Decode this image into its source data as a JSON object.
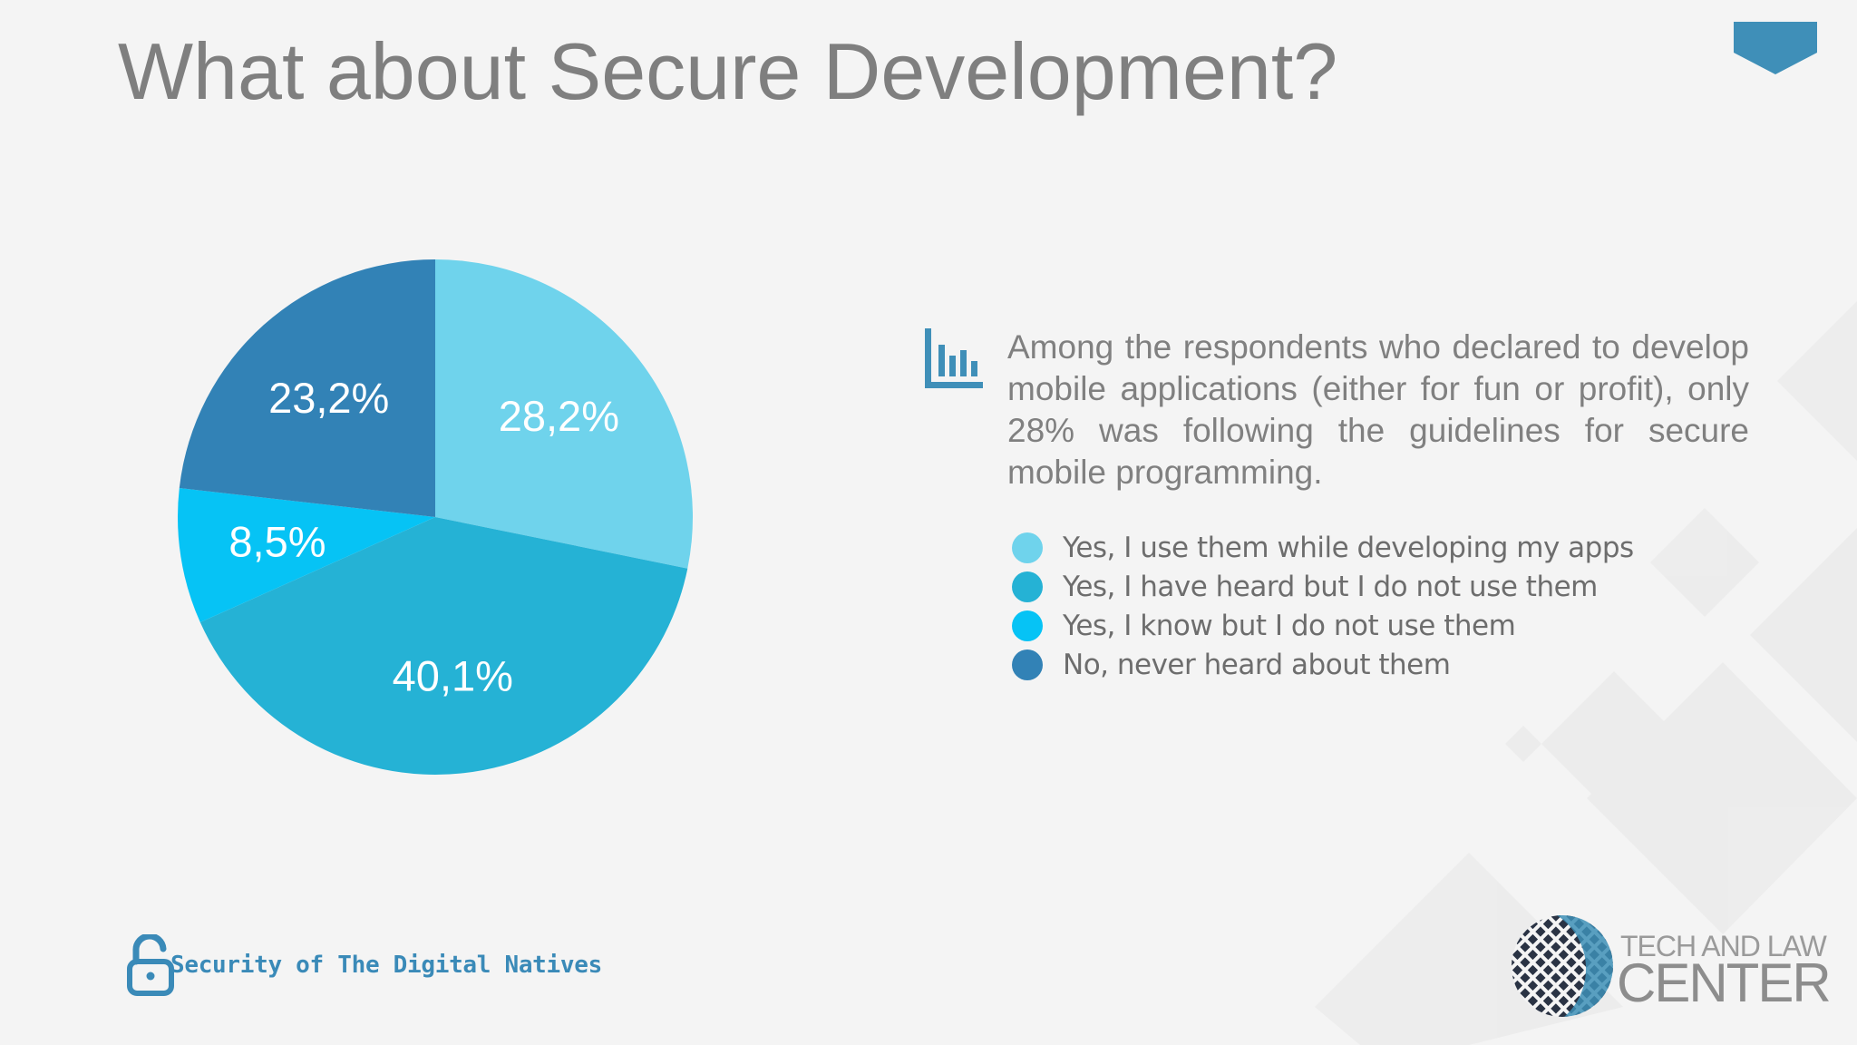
{
  "title": "What about Secure Development?",
  "description": "Among the respondents who declared to develop mobile applications (either for fun or profit), only 28% was following the guidelines for secure mobile programming.",
  "footer": {
    "brand": "Security of The Digital Natives",
    "icon": "open-padlock-icon"
  },
  "logo": {
    "line1": "TECH AND LAW",
    "line2": "CENTER"
  },
  "colors": {
    "accent": "#3f8fb8",
    "title": "#7f7f7f",
    "text": "#808080",
    "background": "#f4f4f4"
  },
  "chart_data": {
    "type": "pie",
    "start": "12 o'clock",
    "direction": "clockwise",
    "slices": [
      {
        "label": "Yes, I use them while developing my apps",
        "value": 28.2,
        "display": "28,2%",
        "color": "#6fd3ec"
      },
      {
        "label": "Yes, I have heard but I do not use them",
        "value": 40.1,
        "display": "40,1%",
        "color": "#25b2d5"
      },
      {
        "label": "Yes, I know but I do not use them",
        "value": 8.5,
        "display": "8,5%",
        "color": "#06c3f5"
      },
      {
        "label": "No, never heard about them",
        "value": 23.2,
        "display": "23,2%",
        "color": "#3282b6"
      }
    ],
    "legend_position": "right"
  }
}
